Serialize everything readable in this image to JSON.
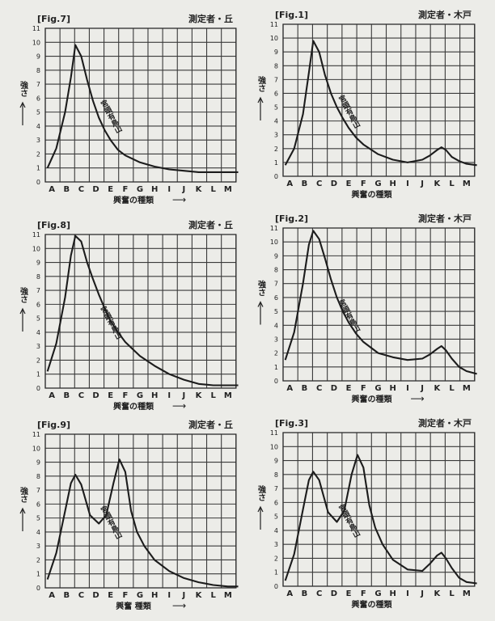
{
  "layout_note": "",
  "charts": [
    {
      "fig": "[Fig.7]",
      "measurer": "測定者・丘",
      "ylabel": "強さ",
      "ann": "宮頭有鳥山",
      "xlabel": "興奮の種類",
      "arrow": "⟶"
    },
    {
      "fig": "[Fig.1]",
      "measurer": "測定者・木戸",
      "ylabel": "強さ",
      "ann": "宮頭有鳥山",
      "xlabel": "興奮の種類",
      "arrow": ""
    },
    {
      "fig": "[Fig.8]",
      "measurer": "測定者・丘",
      "ylabel": "強さ",
      "ann": "宮頭有鳥山",
      "xlabel": "興奮の種類",
      "arrow": "⟶"
    },
    {
      "fig": "[Fig.2]",
      "measurer": "測定者・木戸",
      "ylabel": "強さ",
      "ann": "宮頭有鳥山",
      "xlabel": "興奮の種類",
      "arrow": "⟶"
    },
    {
      "fig": "[Fig.9]",
      "measurer": "測定者・丘",
      "ylabel": "強さ",
      "ann": "宮頭有鳥山",
      "xlabel": "興奮 種類",
      "arrow": "⟶"
    },
    {
      "fig": "[Fig.3]",
      "measurer": "測定者・木戸",
      "ylabel": "強さ",
      "ann": "宮頭有鳥山",
      "xlabel": "興奮の種類",
      "arrow": ""
    }
  ],
  "chart_data": [
    {
      "type": "line",
      "title": "[Fig.7]",
      "xlabel": "興奮の種類",
      "ylabel": "強さ",
      "categories": [
        "A",
        "B",
        "C",
        "D",
        "E",
        "F",
        "G",
        "H",
        "I",
        "J",
        "K",
        "L",
        "M"
      ],
      "ylim": [
        0,
        11
      ],
      "grid": true,
      "x": [
        -0.3,
        0.3,
        0.9,
        1.3,
        1.6,
        2.0,
        2.4,
        2.8,
        3.2,
        3.6,
        4.0,
        4.5,
        5.0,
        6.0,
        7.0,
        8.0,
        9.0,
        10.0,
        11.0,
        12.0,
        12.7
      ],
      "y": [
        1.0,
        2.4,
        5.0,
        7.5,
        9.8,
        9.0,
        7.3,
        5.8,
        4.6,
        3.7,
        3.0,
        2.3,
        1.9,
        1.4,
        1.1,
        0.9,
        0.8,
        0.7,
        0.7,
        0.7,
        0.7
      ]
    },
    {
      "type": "line",
      "title": "[Fig.1]",
      "xlabel": "興奮の種類",
      "ylabel": "強さ",
      "categories": [
        "A",
        "B",
        "C",
        "D",
        "E",
        "F",
        "G",
        "H",
        "I",
        "J",
        "K",
        "L",
        "M"
      ],
      "ylim": [
        0,
        11
      ],
      "grid": true,
      "x": [
        -0.3,
        0.3,
        0.9,
        1.3,
        1.6,
        2.0,
        2.4,
        2.8,
        3.2,
        3.6,
        4.0,
        4.5,
        5.0,
        6.0,
        7.0,
        8.0,
        9.0,
        9.5,
        10.0,
        10.3,
        10.6,
        11.0,
        11.5,
        12.0,
        12.7
      ],
      "y": [
        0.8,
        2.0,
        4.5,
        7.5,
        9.8,
        9.0,
        7.3,
        6.0,
        5.0,
        4.2,
        3.5,
        2.8,
        2.3,
        1.6,
        1.2,
        1.0,
        1.2,
        1.5,
        1.9,
        2.1,
        1.9,
        1.4,
        1.1,
        0.9,
        0.8
      ]
    },
    {
      "type": "line",
      "title": "[Fig.8]",
      "xlabel": "興奮の種類",
      "ylabel": "強さ",
      "categories": [
        "A",
        "B",
        "C",
        "D",
        "E",
        "F",
        "G",
        "H",
        "I",
        "J",
        "K",
        "L",
        "M"
      ],
      "ylim": [
        0,
        11
      ],
      "grid": true,
      "x": [
        -0.3,
        0.3,
        0.9,
        1.3,
        1.6,
        2.0,
        2.4,
        2.8,
        3.2,
        3.6,
        4.0,
        4.5,
        5.0,
        6.0,
        7.0,
        8.0,
        9.0,
        10.0,
        11.0,
        12.0,
        12.7
      ],
      "y": [
        1.2,
        3.2,
        6.5,
        9.5,
        10.9,
        10.5,
        9.0,
        7.8,
        6.7,
        5.7,
        4.8,
        4.0,
        3.3,
        2.3,
        1.6,
        1.0,
        0.6,
        0.3,
        0.2,
        0.2,
        0.2
      ]
    },
    {
      "type": "line",
      "title": "[Fig.2]",
      "xlabel": "興奮の種類",
      "ylabel": "強さ",
      "categories": [
        "A",
        "B",
        "C",
        "D",
        "E",
        "F",
        "G",
        "H",
        "I",
        "J",
        "K",
        "L",
        "M"
      ],
      "ylim": [
        0,
        11
      ],
      "grid": true,
      "x": [
        -0.3,
        0.3,
        0.9,
        1.3,
        1.6,
        2.0,
        2.4,
        2.8,
        3.2,
        3.6,
        4.0,
        4.5,
        5.0,
        6.0,
        7.0,
        8.0,
        9.0,
        9.5,
        10.0,
        10.3,
        10.6,
        11.0,
        11.5,
        12.0,
        12.7
      ],
      "y": [
        1.5,
        3.5,
        7.0,
        9.8,
        10.8,
        10.2,
        8.8,
        7.3,
        6.0,
        5.0,
        4.2,
        3.4,
        2.8,
        2.0,
        1.7,
        1.5,
        1.6,
        1.9,
        2.3,
        2.5,
        2.2,
        1.6,
        1.0,
        0.7,
        0.5
      ]
    },
    {
      "type": "line",
      "title": "[Fig.9]",
      "xlabel": "興奮 種類",
      "ylabel": "強さ",
      "categories": [
        "A",
        "B",
        "C",
        "D",
        "E",
        "F",
        "G",
        "H",
        "I",
        "J",
        "K",
        "L",
        "M"
      ],
      "ylim": [
        0,
        11
      ],
      "grid": true,
      "x": [
        -0.3,
        0.3,
        0.9,
        1.3,
        1.6,
        2.0,
        2.6,
        3.2,
        3.7,
        4.2,
        4.6,
        5.0,
        5.4,
        5.8,
        6.3,
        7.0,
        8.0,
        9.0,
        10.0,
        11.0,
        12.0,
        12.7
      ],
      "y": [
        0.6,
        2.5,
        5.5,
        7.5,
        8.1,
        7.4,
        5.2,
        4.6,
        5.2,
        7.5,
        9.2,
        8.3,
        5.5,
        4.0,
        3.0,
        2.0,
        1.2,
        0.7,
        0.4,
        0.2,
        0.1,
        0.1
      ]
    },
    {
      "type": "line",
      "title": "[Fig.3]",
      "xlabel": "興奮の種類",
      "ylabel": "強さ",
      "categories": [
        "A",
        "B",
        "C",
        "D",
        "E",
        "F",
        "G",
        "H",
        "I",
        "J",
        "K",
        "L",
        "M"
      ],
      "ylim": [
        0,
        11
      ],
      "grid": true,
      "x": [
        -0.3,
        0.3,
        0.9,
        1.3,
        1.6,
        2.0,
        2.6,
        3.2,
        3.7,
        4.2,
        4.6,
        5.0,
        5.4,
        5.8,
        6.3,
        7.0,
        8.0,
        9.0,
        9.5,
        10.0,
        10.3,
        10.6,
        11.0,
        11.5,
        12.0,
        12.7
      ],
      "y": [
        0.4,
        2.3,
        5.5,
        7.6,
        8.2,
        7.6,
        5.3,
        4.6,
        5.4,
        8.0,
        9.4,
        8.5,
        5.8,
        4.2,
        3.0,
        1.9,
        1.2,
        1.1,
        1.6,
        2.2,
        2.4,
        2.0,
        1.3,
        0.6,
        0.3,
        0.2
      ]
    }
  ]
}
